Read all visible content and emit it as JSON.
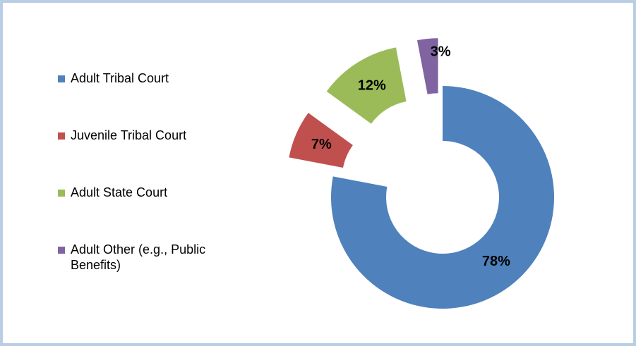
{
  "chart_data": {
    "type": "pie",
    "donut": true,
    "categories": [
      "Adult Tribal Court",
      "Juvenile Tribal Court",
      "Adult State Court",
      "Adult Other (e.g., Public Benefits)"
    ],
    "values": [
      78,
      7,
      12,
      3
    ],
    "value_labels": [
      "78%",
      "7%",
      "12%",
      "3%"
    ],
    "colors": [
      "#4f81bd",
      "#c0504d",
      "#9bbb59",
      "#8064a2"
    ],
    "exploded": [
      false,
      true,
      true,
      true
    ],
    "legend": "left"
  }
}
